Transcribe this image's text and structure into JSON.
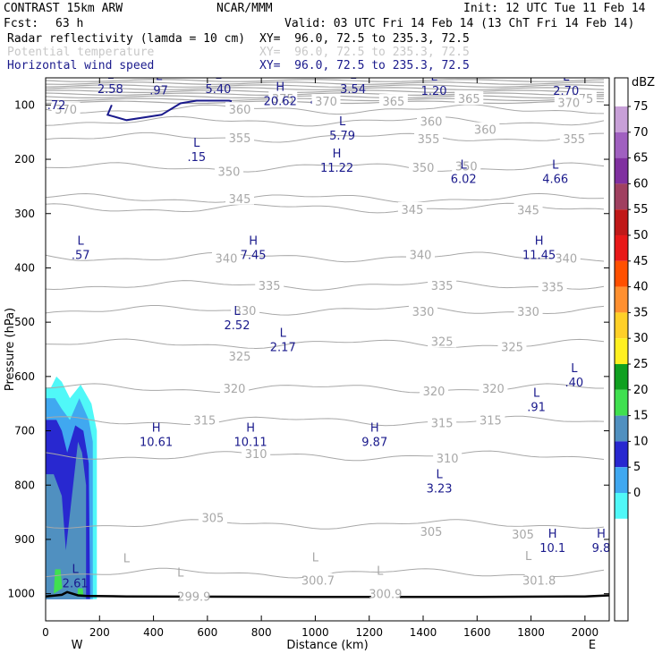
{
  "header": {
    "title_left": "CONTRAST 15km ARW",
    "title_center": "NCAR/MMM",
    "init": "Init: 12 UTC Tue 11 Feb 14",
    "fcst_label": "Fcst:",
    "fcst_value": "63 h",
    "valid": "Valid: 03 UTC Fri 14 Feb 14 (13 ChT Fri 14 Feb 14)",
    "field1": "Radar reflectivity (lamda = 10 cm)",
    "field1_xy": "XY=  96.0, 72.5 to 235.3, 72.5",
    "field2": "Potential temperature",
    "field2_xy": "XY=  96.0, 72.5 to 235.3, 72.5",
    "field3": "Horizontal wind speed",
    "field3_xy": "XY=  96.0, 72.5 to 235.3, 72.5"
  },
  "colors": {
    "theta": "#a8a8a8",
    "wind": "#1a1a8c",
    "ground": "#000000"
  },
  "chart_data": {
    "type": "cross-section",
    "xlabel": "Distance (km)",
    "ylabel": "Pressure (hPa)",
    "xlim": [
      0,
      2090
    ],
    "ylim": [
      1050,
      50
    ],
    "xticks": [
      0,
      200,
      400,
      600,
      800,
      1000,
      1200,
      1400,
      1600,
      1800,
      2000
    ],
    "yticks": [
      100,
      200,
      300,
      400,
      500,
      600,
      700,
      800,
      900,
      1000
    ],
    "x_end_labels": {
      "left": "W",
      "right": "E"
    },
    "colorbar": {
      "unit": "dBZ",
      "levels": [
        "75",
        "70",
        "65",
        "60",
        "55",
        "50",
        "45",
        "40",
        "35",
        "30",
        "25",
        "20",
        "15",
        "10",
        "5",
        "0"
      ],
      "colors": [
        "#c8a0d8",
        "#a060c0",
        "#8030a0",
        "#a04060",
        "#c01818",
        "#e81818",
        "#ff5000",
        "#ff9030",
        "#ffd028",
        "#fff020",
        "#10a020",
        "#40e050",
        "#5090c0",
        "#2828d0",
        "#40a8f0",
        "#50f8f8"
      ]
    },
    "theta_labels": [
      {
        "text": "370",
        "x": 75,
        "p": 108
      },
      {
        "text": "375",
        "x": 880,
        "p": 88
      },
      {
        "text": "370",
        "x": 1040,
        "p": 93
      },
      {
        "text": "365",
        "x": 1290,
        "p": 93
      },
      {
        "text": "365",
        "x": 1570,
        "p": 88
      },
      {
        "text": "375",
        "x": 1990,
        "p": 88
      },
      {
        "text": "370",
        "x": 1940,
        "p": 95
      },
      {
        "text": "360",
        "x": 720,
        "p": 108
      },
      {
        "text": "360",
        "x": 1430,
        "p": 130
      },
      {
        "text": "360",
        "x": 1630,
        "p": 145
      },
      {
        "text": "355",
        "x": 720,
        "p": 160
      },
      {
        "text": "355",
        "x": 1420,
        "p": 162
      },
      {
        "text": "355",
        "x": 1960,
        "p": 162
      },
      {
        "text": "350",
        "x": 680,
        "p": 222
      },
      {
        "text": "350",
        "x": 1400,
        "p": 215
      },
      {
        "text": "350",
        "x": 1560,
        "p": 212
      },
      {
        "text": "345",
        "x": 720,
        "p": 272
      },
      {
        "text": "345",
        "x": 1360,
        "p": 292
      },
      {
        "text": "345",
        "x": 1790,
        "p": 293
      },
      {
        "text": "340",
        "x": 670,
        "p": 382
      },
      {
        "text": "340",
        "x": 1390,
        "p": 375
      },
      {
        "text": "340",
        "x": 1930,
        "p": 382
      },
      {
        "text": "335",
        "x": 830,
        "p": 432
      },
      {
        "text": "335",
        "x": 1470,
        "p": 432
      },
      {
        "text": "335",
        "x": 1880,
        "p": 435
      },
      {
        "text": "330",
        "x": 740,
        "p": 478
      },
      {
        "text": "330",
        "x": 1400,
        "p": 480
      },
      {
        "text": "330",
        "x": 1790,
        "p": 480
      },
      {
        "text": "325",
        "x": 720,
        "p": 562
      },
      {
        "text": "325",
        "x": 1470,
        "p": 535
      },
      {
        "text": "325",
        "x": 1730,
        "p": 545
      },
      {
        "text": "320",
        "x": 700,
        "p": 622
      },
      {
        "text": "320",
        "x": 1440,
        "p": 627
      },
      {
        "text": "320",
        "x": 1660,
        "p": 622
      },
      {
        "text": "315",
        "x": 590,
        "p": 680
      },
      {
        "text": "315",
        "x": 1470,
        "p": 685
      },
      {
        "text": "315",
        "x": 1650,
        "p": 680
      },
      {
        "text": "310",
        "x": 780,
        "p": 742
      },
      {
        "text": "310",
        "x": 1490,
        "p": 750
      },
      {
        "text": "305",
        "x": 620,
        "p": 860
      },
      {
        "text": "305",
        "x": 1430,
        "p": 885
      },
      {
        "text": "305",
        "x": 1770,
        "p": 890
      },
      {
        "text": "300.7",
        "x": 1010,
        "p": 975
      },
      {
        "text": "300.9",
        "x": 1260,
        "p": 1000
      },
      {
        "text": "301.8",
        "x": 1830,
        "p": 975
      },
      {
        "text": "299.9",
        "x": 550,
        "p": 1005
      }
    ],
    "theta_extrema": [
      {
        "mark": "L",
        "x": 1000,
        "p": 960
      },
      {
        "mark": "L",
        "x": 1240,
        "p": 985
      },
      {
        "mark": "L",
        "x": 1790,
        "p": 958
      },
      {
        "mark": "L",
        "x": 500,
        "p": 988
      },
      {
        "mark": "L",
        "x": 300,
        "p": 962
      }
    ],
    "wind_extrema": [
      {
        "mark": "L",
        "value": "2.58",
        "x": 240,
        "p": 75
      },
      {
        "mark": "L",
        "value": ".97",
        "x": 420,
        "p": 77
      },
      {
        "mark": "L",
        "value": "5.40",
        "x": 640,
        "p": 75
      },
      {
        "mark": "L",
        "value": "3.54",
        "x": 1140,
        "p": 75
      },
      {
        "mark": "L",
        "value": "1.20",
        "x": 1440,
        "p": 78
      },
      {
        "mark": "L",
        "value": "2.70",
        "x": 1930,
        "p": 78
      },
      {
        "mark": "H",
        "value": "20.62",
        "x": 870,
        "p": 97
      },
      {
        "mark": "",
        "value": ".72",
        "x": 40,
        "p": 104
      },
      {
        "mark": "L",
        "value": "5.79",
        "x": 1100,
        "p": 160
      },
      {
        "mark": "L",
        "value": ".15",
        "x": 560,
        "p": 200
      },
      {
        "mark": "H",
        "value": "11.22",
        "x": 1080,
        "p": 220
      },
      {
        "mark": "L",
        "value": "6.02",
        "x": 1550,
        "p": 240
      },
      {
        "mark": "L",
        "value": "4.66",
        "x": 1890,
        "p": 240
      },
      {
        "mark": "L",
        "value": ".57",
        "x": 130,
        "p": 380
      },
      {
        "mark": "H",
        "value": "7.45",
        "x": 770,
        "p": 380
      },
      {
        "mark": "H",
        "value": "11.45",
        "x": 1830,
        "p": 380
      },
      {
        "mark": "L",
        "value": "2.52",
        "x": 710,
        "p": 510
      },
      {
        "mark": "L",
        "value": "2.17",
        "x": 880,
        "p": 550
      },
      {
        "mark": "L",
        "value": ".40",
        "x": 1960,
        "p": 615
      },
      {
        "mark": "L",
        "value": ".91",
        "x": 1820,
        "p": 660
      },
      {
        "mark": "H",
        "value": "10.61",
        "x": 410,
        "p": 725
      },
      {
        "mark": "H",
        "value": "10.11",
        "x": 760,
        "p": 725
      },
      {
        "mark": "H",
        "value": "9.87",
        "x": 1220,
        "p": 725
      },
      {
        "mark": "L",
        "value": "3.23",
        "x": 1460,
        "p": 810
      },
      {
        "mark": "H",
        "value": "10.1",
        "x": 1880,
        "p": 920
      },
      {
        "mark": "H",
        "value": "9.8",
        "x": 2060,
        "p": 920
      },
      {
        "mark": "L",
        "value": "2.61",
        "x": 110,
        "p": 985
      }
    ],
    "wind_contour": [
      [
        245,
        100
      ],
      [
        230,
        118
      ],
      [
        300,
        128
      ],
      [
        430,
        118
      ],
      [
        500,
        97
      ],
      [
        560,
        92
      ],
      [
        680,
        92
      ],
      [
        690,
        93
      ]
    ],
    "reflectivity_bands": [
      {
        "dbz": "5",
        "color": "#50f8f8",
        "poly": [
          [
            0,
            620
          ],
          [
            20,
            620
          ],
          [
            40,
            600
          ],
          [
            60,
            610
          ],
          [
            90,
            640
          ],
          [
            130,
            615
          ],
          [
            170,
            650
          ],
          [
            190,
            700
          ],
          [
            190,
            1010
          ],
          [
            0,
            1010
          ]
        ]
      },
      {
        "dbz": "10",
        "color": "#40a8f0",
        "poly": [
          [
            0,
            640
          ],
          [
            35,
            640
          ],
          [
            60,
            660
          ],
          [
            90,
            680
          ],
          [
            125,
            640
          ],
          [
            160,
            680
          ],
          [
            175,
            720
          ],
          [
            175,
            1010
          ],
          [
            0,
            1010
          ]
        ]
      },
      {
        "dbz": "15",
        "color": "#2828d0",
        "poly": [
          [
            0,
            680
          ],
          [
            40,
            680
          ],
          [
            60,
            700
          ],
          [
            80,
            740
          ],
          [
            110,
            690
          ],
          [
            140,
            700
          ],
          [
            160,
            760
          ],
          [
            165,
            1010
          ],
          [
            0,
            1010
          ]
        ]
      },
      {
        "dbz": "20",
        "color": "#5090c0",
        "poly": [
          [
            0,
            780
          ],
          [
            30,
            780
          ],
          [
            60,
            820
          ],
          [
            75,
            920
          ],
          [
            120,
            720
          ],
          [
            135,
            740
          ],
          [
            150,
            800
          ],
          [
            150,
            1010
          ],
          [
            0,
            1010
          ]
        ]
      },
      {
        "dbz": "25",
        "color": "#40e050",
        "poly": [
          [
            35,
            955
          ],
          [
            55,
            955
          ],
          [
            62,
            990
          ],
          [
            30,
            1000
          ]
        ]
      },
      {
        "dbz": "25b",
        "color": "#40e050",
        "poly": [
          [
            120,
            990
          ],
          [
            138,
            990
          ],
          [
            140,
            1003
          ],
          [
            118,
            1003
          ]
        ]
      }
    ],
    "ground": [
      [
        0,
        1005
      ],
      [
        60,
        1002
      ],
      [
        80,
        997
      ],
      [
        120,
        1003
      ],
      [
        150,
        1004
      ],
      [
        300,
        1005
      ],
      [
        1000,
        1006
      ],
      [
        1600,
        1006
      ],
      [
        2000,
        1005
      ],
      [
        2090,
        1003
      ]
    ]
  }
}
